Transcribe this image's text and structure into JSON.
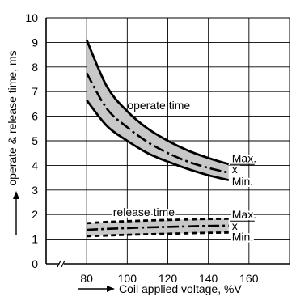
{
  "chart_data": {
    "type": "line",
    "xlabel": "Coil applied voltage, %V",
    "ylabel": "operate & release time, ms",
    "xlim": [
      60,
      180
    ],
    "ylim": [
      0,
      10
    ],
    "x_ticks": [
      80,
      100,
      120,
      140,
      160
    ],
    "y_ticks": [
      0,
      1,
      2,
      3,
      4,
      5,
      6,
      7,
      8,
      9,
      10
    ],
    "grid": true,
    "axis_break": "x",
    "band_fill_color": "#c8c8c8",
    "x": [
      80,
      90,
      100,
      110,
      120,
      130,
      140,
      150
    ],
    "groups": [
      {
        "label": "operate time",
        "series": [
          {
            "name": "Max.",
            "style": "solid",
            "values": [
              9.1,
              7.2,
              6.2,
              5.5,
              5.0,
              4.6,
              4.3,
              4.05
            ]
          },
          {
            "name": "x",
            "style": "dash-dot",
            "values": [
              7.75,
              6.3,
              5.55,
              4.95,
              4.5,
              4.15,
              3.9,
              3.7
            ]
          },
          {
            "name": "Min.",
            "style": "solid",
            "values": [
              6.65,
              5.6,
              5.0,
              4.5,
              4.15,
              3.85,
              3.6,
              3.4
            ]
          }
        ]
      },
      {
        "label": "release time",
        "series": [
          {
            "name": "Max.",
            "style": "dashed",
            "values": [
              1.65,
              1.7,
              1.73,
              1.76,
              1.78,
              1.8,
              1.82,
              1.83
            ]
          },
          {
            "name": "x",
            "style": "dash-dot",
            "values": [
              1.38,
              1.42,
              1.45,
              1.48,
              1.5,
              1.52,
              1.54,
              1.55
            ]
          },
          {
            "name": "Min.",
            "style": "dashed",
            "values": [
              1.12,
              1.15,
              1.18,
              1.2,
              1.22,
              1.24,
              1.26,
              1.27
            ]
          }
        ]
      }
    ]
  }
}
